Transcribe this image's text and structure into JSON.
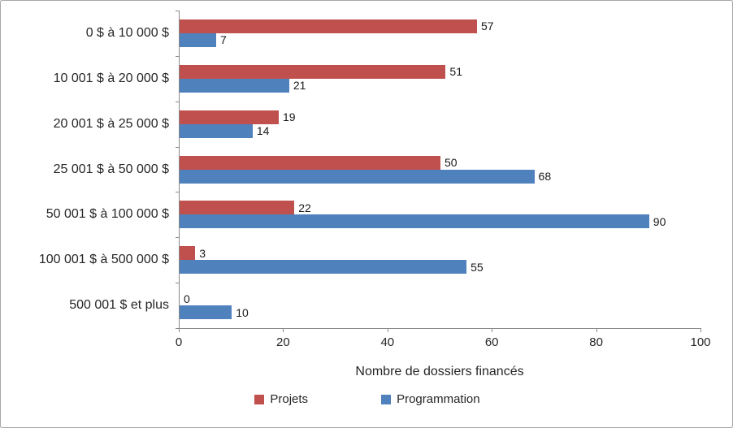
{
  "chart_data": {
    "type": "bar",
    "orientation": "horizontal",
    "title": "",
    "categories": [
      "0 $ à 10 000 $",
      "10 001 $ à 20 000 $",
      "20 001 $ à 25 000 $",
      "25 001 $ à 50 000 $",
      "50 001 $ à 100 000 $",
      "100 001 $ à 500 000 $",
      "500 001 $ et plus"
    ],
    "series": [
      {
        "name": "Projets",
        "color": "#c0504d",
        "values": [
          57,
          51,
          19,
          50,
          22,
          3,
          0
        ]
      },
      {
        "name": "Programmation",
        "color": "#4f81bd",
        "values": [
          7,
          21,
          14,
          68,
          90,
          55,
          10
        ]
      }
    ],
    "xlabel": "Nombre de dossiers financés",
    "ylabel": "",
    "xlim": [
      0,
      100
    ],
    "xticks": [
      0,
      20,
      40,
      60,
      80,
      100
    ],
    "grid": false,
    "value_labels": true,
    "legend_position": "bottom"
  }
}
